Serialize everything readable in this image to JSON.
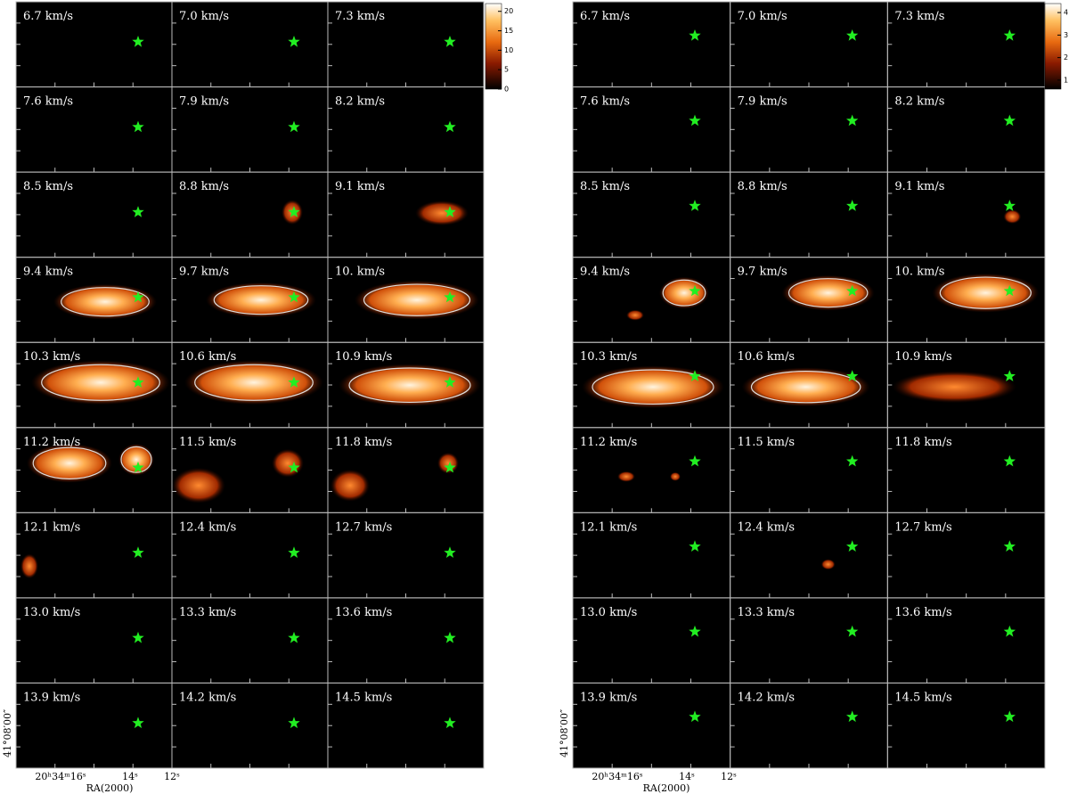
{
  "left": {
    "labels": [
      "6.7 km/s",
      "7.0 km/s",
      "7.3 km/s",
      "7.6 km/s",
      "7.9 km/s",
      "8.2 km/s",
      "8.5 km/s",
      "8.8 km/s",
      "9.1 km/s",
      "9.4 km/s",
      "9.7 km/s",
      "10. km/s",
      "10.3 km/s",
      "10.6 km/s",
      "10.9 km/s",
      "11.2 km/s",
      "11.5 km/s",
      "11.8 km/s",
      "12.1 km/s",
      "12.4 km/s",
      "12.7 km/s",
      "13.0 km/s",
      "13.3 km/s",
      "13.6 km/s",
      "13.9 km/s",
      "14.2 km/s",
      "14.5 km/s"
    ],
    "colorbar": {
      "range": [
        0,
        22
      ],
      "ticks": [
        0,
        5,
        10,
        15,
        20
      ]
    },
    "dec_label": "41°08′00″",
    "ra_ticks": [
      "20ʰ34ᵐ16ˢ",
      "14ˢ",
      "12ˢ"
    ],
    "ra_label": "RA(2000)"
  },
  "right": {
    "labels": [
      "6.7 km/s",
      "7.0 km/s",
      "7.3 km/s",
      "7.6 km/s",
      "7.9 km/s",
      "8.2 km/s",
      "8.5 km/s",
      "8.8 km/s",
      "9.1 km/s",
      "9.4 km/s",
      "9.7 km/s",
      "10. km/s",
      "10.3 km/s",
      "10.6 km/s",
      "10.9 km/s",
      "11.2 km/s",
      "11.5 km/s",
      "11.8 km/s",
      "12.1 km/s",
      "12.4 km/s",
      "12.7 km/s",
      "13.0 km/s",
      "13.3 km/s",
      "13.6 km/s",
      "13.9 km/s",
      "14.2 km/s",
      "14.5 km/s"
    ],
    "colorbar": {
      "range": [
        0.6,
        4.4
      ],
      "ticks": [
        1,
        2,
        3,
        4
      ]
    },
    "dec_label": "41°08′00″",
    "ra_ticks": [
      "20ʰ34ᵐ16ˢ",
      "14ˢ",
      "12ˢ"
    ],
    "ra_label": "RA(2000)"
  }
}
